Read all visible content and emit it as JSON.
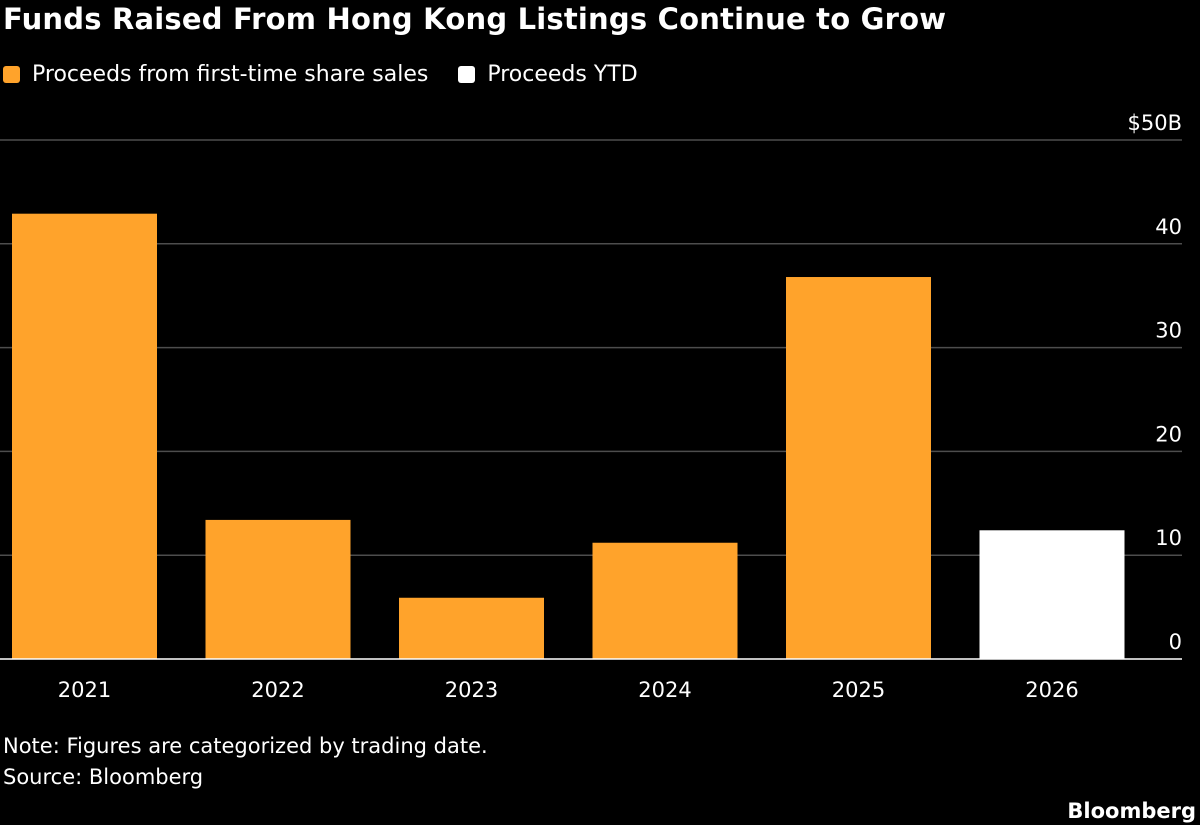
{
  "colors": {
    "background": "#000000",
    "proceeds": "#ffa32b",
    "ytd": "#ffffff",
    "grid": "#4d4d4d",
    "text": "#ffffff"
  },
  "chart_data": {
    "type": "bar",
    "title": "Funds Raised From Hong Kong Listings Continue to Grow",
    "legend": [
      {
        "label": "Proceeds from first-time share sales",
        "color": "#ffa32b"
      },
      {
        "label": "Proceeds YTD",
        "color": "#ffffff"
      }
    ],
    "categories": [
      "2021",
      "2022",
      "2023",
      "2024",
      "2025",
      "2026"
    ],
    "values": [
      42.9,
      13.4,
      5.9,
      11.2,
      36.8,
      12.4
    ],
    "bar_colors": [
      "#ffa32b",
      "#ffa32b",
      "#ffa32b",
      "#ffa32b",
      "#ffa32b",
      "#ffffff"
    ],
    "ylim": [
      0,
      50
    ],
    "yticks": [
      0,
      10,
      20,
      30,
      40,
      50
    ],
    "ytick_labels": [
      "0",
      "10",
      "20",
      "30",
      "40",
      "$50B"
    ],
    "xlabel": "",
    "ylabel": "",
    "grid": true,
    "y_axis_position": "right"
  },
  "footer": {
    "note": "Note: Figures are categorized by trading date.",
    "source": "Source: Bloomberg",
    "brand": "Bloomberg"
  }
}
